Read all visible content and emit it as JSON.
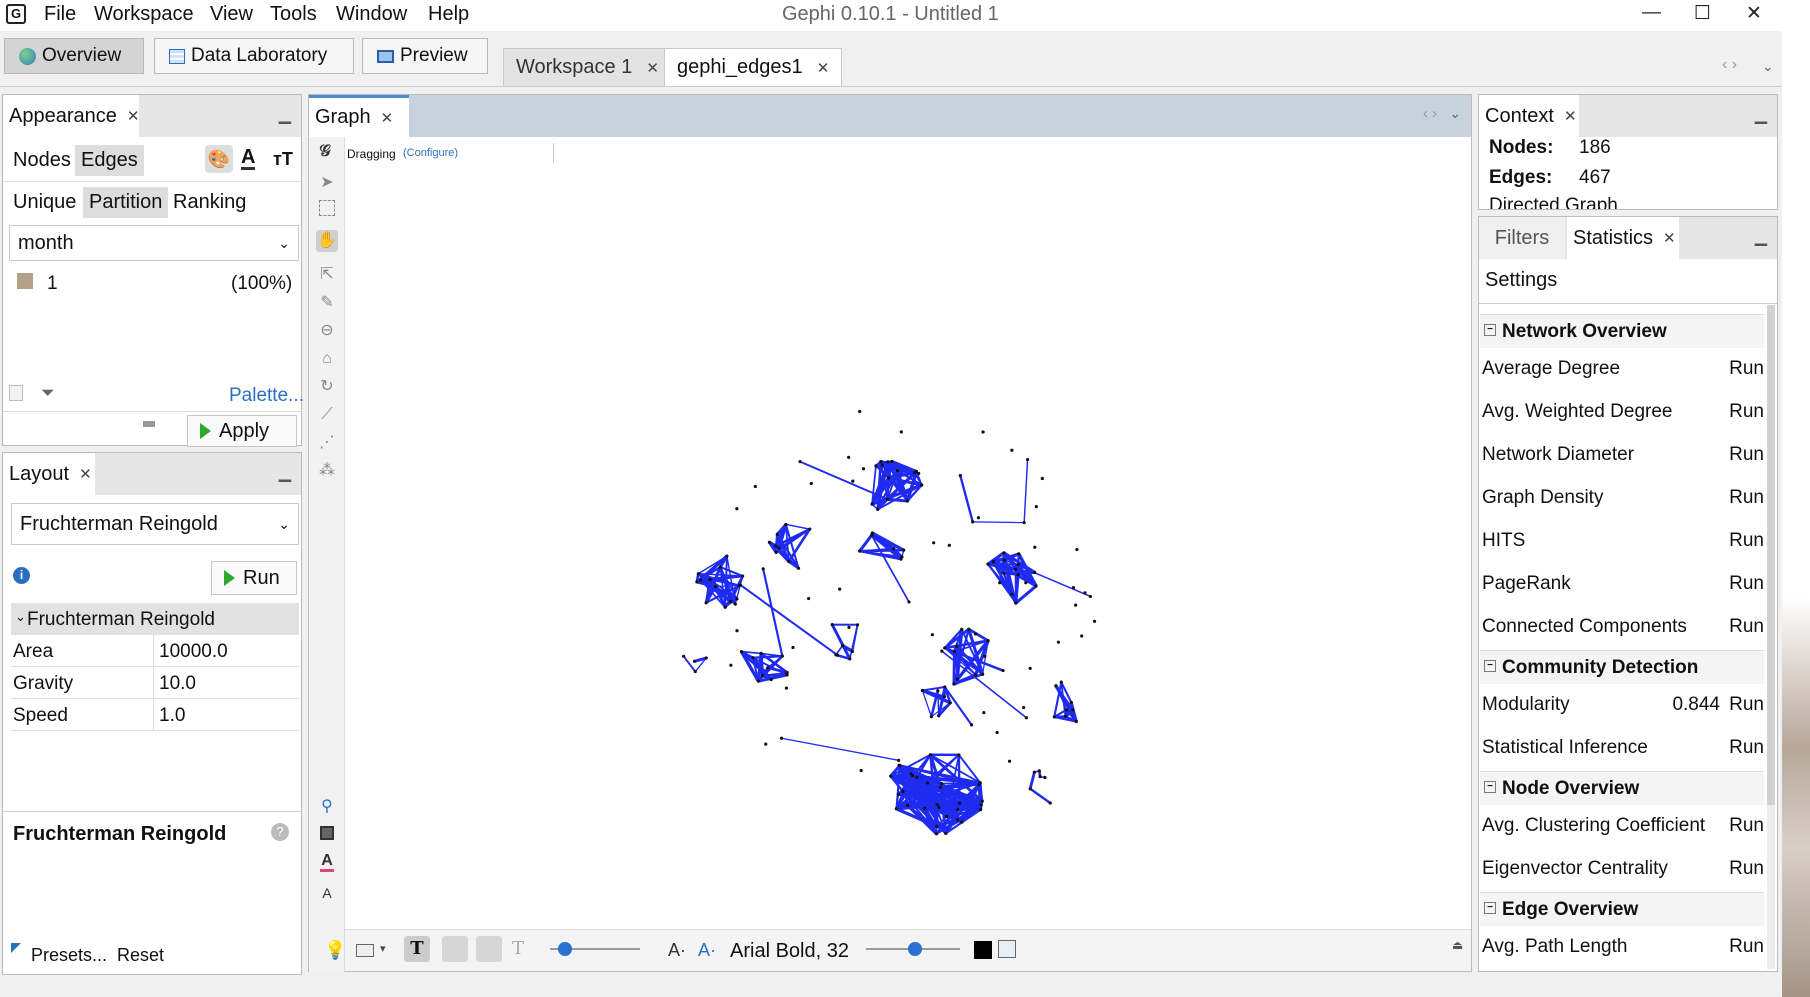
{
  "window": {
    "title": "Gephi 0.10.1 - Untitled 1",
    "minimize": "—",
    "maximize": "☐",
    "close": "✕"
  },
  "menu": [
    "File",
    "Workspace",
    "View",
    "Tools",
    "Window",
    "Help"
  ],
  "modes": {
    "overview": "Overview",
    "data_lab": "Data Laboratory",
    "preview": "Preview"
  },
  "workspace_tabs": [
    "Workspace 1",
    "gephi_edges1"
  ],
  "appearance": {
    "tab": "Appearance",
    "element_tabs": [
      "Nodes",
      "Edges"
    ],
    "mode_tabs": [
      "Unique",
      "Partition",
      "Ranking"
    ],
    "attribute": "month",
    "partition_item": {
      "label": "1",
      "pct": "(100%)",
      "color": "#b3a08a"
    },
    "palette_link": "Palette...",
    "apply": "Apply"
  },
  "layout": {
    "tab": "Layout",
    "algorithm": "Fruchterman Reingold",
    "run": "Run",
    "section": "Fruchterman Reingold",
    "params": [
      {
        "name": "Area",
        "value": "10000.0"
      },
      {
        "name": "Gravity",
        "value": "10.0"
      },
      {
        "name": "Speed",
        "value": "1.0"
      }
    ],
    "description_title": "Fruchterman Reingold",
    "presets": "Presets...",
    "reset": "Reset"
  },
  "graph": {
    "tab": "Graph",
    "tool_status": "Dragging",
    "configure": "(Configure)",
    "font_label": "Arial Bold, 32",
    "edge_color": "#1f2bf0",
    "node_color": "#111111"
  },
  "context": {
    "tab": "Context",
    "nodes_label": "Nodes:",
    "nodes": "186",
    "edges_label": "Edges:",
    "edges": "467",
    "graph_type": "Directed Graph"
  },
  "stats": {
    "tabs": [
      "Filters",
      "Statistics"
    ],
    "settings": "Settings",
    "run": "Run",
    "sections": [
      {
        "title": "Network Overview",
        "items": [
          {
            "label": "Average Degree",
            "value": ""
          },
          {
            "label": "Avg. Weighted Degree",
            "value": ""
          },
          {
            "label": "Network Diameter",
            "value": ""
          },
          {
            "label": "Graph Density",
            "value": ""
          },
          {
            "label": "HITS",
            "value": ""
          },
          {
            "label": "PageRank",
            "value": ""
          },
          {
            "label": "Connected Components",
            "value": ""
          }
        ]
      },
      {
        "title": "Community Detection",
        "items": [
          {
            "label": "Modularity",
            "value": "0.844"
          },
          {
            "label": "Statistical Inference",
            "value": ""
          }
        ]
      },
      {
        "title": "Node Overview",
        "items": [
          {
            "label": "Avg. Clustering Coefficient",
            "value": ""
          },
          {
            "label": "Eigenvector Centrality",
            "value": ""
          }
        ]
      },
      {
        "title": "Edge Overview",
        "items": [
          {
            "label": "Avg. Path Length",
            "value": ""
          }
        ]
      }
    ]
  }
}
